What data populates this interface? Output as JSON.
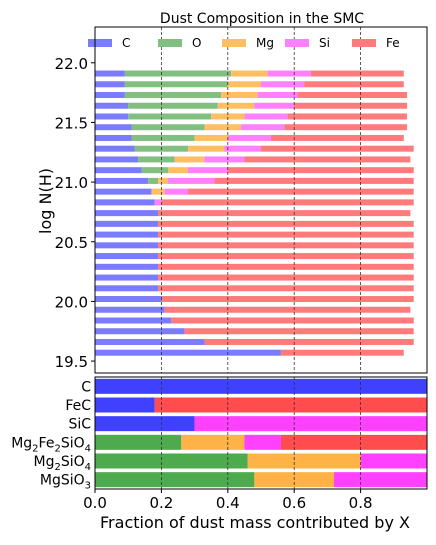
{
  "chart_data": [
    {
      "type": "bar",
      "orientation": "horizontal",
      "stacked": true,
      "title": "Dust Composition in the SMC",
      "ylabel": "log N(H)",
      "xlim": [
        0,
        1
      ],
      "ylim": [
        19.4,
        22.3
      ],
      "yticks": [
        19.5,
        20.0,
        20.5,
        21.0,
        21.5,
        22.0
      ],
      "ytick_labels": [
        "19.5",
        "20.0",
        "20.5",
        "21.0",
        "21.5",
        "22.0"
      ],
      "vlines": [
        0.2,
        0.4,
        0.6,
        0.8
      ],
      "legend": {
        "placement": "top",
        "entries": [
          "C",
          "O",
          "Mg",
          "Si",
          "Fe"
        ]
      },
      "series": [
        {
          "name": "C",
          "color": "#7b7bff"
        },
        {
          "name": "O",
          "color": "#80bf80"
        },
        {
          "name": "Mg",
          "color": "#ffbf60"
        },
        {
          "name": "Si",
          "color": "#ff80ff"
        },
        {
          "name": "Fe",
          "color": "#ff7b7b"
        }
      ],
      "rows": [
        {
          "y": 21.91,
          "values": [
            0.09,
            0.32,
            0.11,
            0.13,
            0.28
          ]
        },
        {
          "y": 21.82,
          "values": [
            0.09,
            0.31,
            0.1,
            0.13,
            0.3
          ]
        },
        {
          "y": 21.73,
          "values": [
            0.09,
            0.29,
            0.11,
            0.12,
            0.33
          ]
        },
        {
          "y": 21.64,
          "values": [
            0.1,
            0.27,
            0.11,
            0.12,
            0.34
          ]
        },
        {
          "y": 21.55,
          "values": [
            0.1,
            0.25,
            0.1,
            0.13,
            0.36
          ]
        },
        {
          "y": 21.46,
          "values": [
            0.11,
            0.22,
            0.11,
            0.13,
            0.37
          ]
        },
        {
          "y": 21.37,
          "values": [
            0.11,
            0.19,
            0.1,
            0.13,
            0.4
          ]
        },
        {
          "y": 21.28,
          "values": [
            0.12,
            0.16,
            0.11,
            0.11,
            0.46
          ]
        },
        {
          "y": 21.19,
          "values": [
            0.13,
            0.11,
            0.09,
            0.12,
            0.5
          ]
        },
        {
          "y": 21.1,
          "values": [
            0.14,
            0.08,
            0.06,
            0.12,
            0.56
          ]
        },
        {
          "y": 21.01,
          "values": [
            0.16,
            0.03,
            0.03,
            0.14,
            0.6
          ]
        },
        {
          "y": 20.92,
          "values": [
            0.17,
            0.0,
            0.04,
            0.07,
            0.68
          ]
        },
        {
          "y": 20.83,
          "values": [
            0.18,
            0.0,
            0.0,
            0.02,
            0.76
          ]
        },
        {
          "y": 20.74,
          "values": [
            0.19,
            0.0,
            0.0,
            0.0,
            0.76
          ]
        },
        {
          "y": 20.65,
          "values": [
            0.19,
            0.0,
            0.0,
            0.0,
            0.77
          ]
        },
        {
          "y": 20.56,
          "values": [
            0.19,
            0.0,
            0.0,
            0.0,
            0.77
          ]
        },
        {
          "y": 20.47,
          "values": [
            0.19,
            0.0,
            0.0,
            0.0,
            0.77
          ]
        },
        {
          "y": 20.38,
          "values": [
            0.19,
            0.0,
            0.0,
            0.0,
            0.77
          ]
        },
        {
          "y": 20.29,
          "values": [
            0.19,
            0.0,
            0.0,
            0.0,
            0.77
          ]
        },
        {
          "y": 20.2,
          "values": [
            0.19,
            0.0,
            0.0,
            0.0,
            0.77
          ]
        },
        {
          "y": 20.11,
          "values": [
            0.19,
            0.0,
            0.0,
            0.0,
            0.77
          ]
        },
        {
          "y": 20.02,
          "values": [
            0.2,
            0.0,
            0.0,
            0.0,
            0.76
          ]
        },
        {
          "y": 19.93,
          "values": [
            0.21,
            0.0,
            0.0,
            0.0,
            0.74
          ]
        },
        {
          "y": 19.84,
          "values": [
            0.23,
            0.0,
            0.0,
            0.0,
            0.73
          ]
        },
        {
          "y": 19.75,
          "values": [
            0.27,
            0.0,
            0.0,
            0.0,
            0.69
          ]
        },
        {
          "y": 19.66,
          "values": [
            0.33,
            0.0,
            0.0,
            0.0,
            0.63
          ]
        },
        {
          "y": 19.57,
          "values": [
            0.56,
            0.0,
            0.0,
            0.0,
            0.37
          ]
        }
      ]
    },
    {
      "type": "bar",
      "orientation": "horizontal",
      "stacked": true,
      "xlabel": "Fraction of dust mass contributed by X",
      "xlim": [
        0,
        1
      ],
      "xticks": [
        0.0,
        0.2,
        0.4,
        0.6,
        0.8
      ],
      "xtick_labels": [
        "0.0",
        "0.2",
        "0.4",
        "0.6",
        "0.8"
      ],
      "vlines": [
        0.2,
        0.4,
        0.6,
        0.8
      ],
      "colors": {
        "C": "#4040ff",
        "O": "#4daa4d",
        "Mg": "#ffb347",
        "Si": "#ff40ff",
        "Fe": "#ff4d4d"
      },
      "species": [
        {
          "name": "C",
          "label_main": "C",
          "label_parts": [
            [
              "C",
              ""
            ]
          ],
          "values": [
            1.0,
            0.0,
            0.0,
            0.0,
            0.0
          ]
        },
        {
          "name": "FeC",
          "label_main": "FeC",
          "label_parts": [
            [
              "FeC",
              ""
            ]
          ],
          "values": [
            0.18,
            0.0,
            0.0,
            0.0,
            0.82
          ]
        },
        {
          "name": "SiC",
          "label_main": "SiC",
          "label_parts": [
            [
              "SiC",
              ""
            ]
          ],
          "values": [
            0.3,
            0.0,
            0.0,
            0.7,
            0.0
          ]
        },
        {
          "name": "Mg2Fe2SiO4",
          "label_main": "Mg2Fe2SiO4",
          "label_parts": [
            [
              "Mg",
              "2"
            ],
            [
              "Fe",
              "2"
            ],
            [
              "SiO",
              "4"
            ]
          ],
          "values": [
            0.0,
            0.26,
            0.19,
            0.11,
            0.44
          ]
        },
        {
          "name": "Mg2SiO4",
          "label_main": "Mg2SiO4",
          "label_parts": [
            [
              "Mg",
              "2"
            ],
            [
              "SiO",
              "4"
            ]
          ],
          "values": [
            0.0,
            0.46,
            0.34,
            0.2,
            0.0
          ]
        },
        {
          "name": "MgSiO3",
          "label_main": "MgSiO3",
          "label_parts": [
            [
              "MgSiO",
              "3"
            ]
          ],
          "values": [
            0.0,
            0.48,
            0.24,
            0.28,
            0.0
          ]
        }
      ]
    }
  ]
}
